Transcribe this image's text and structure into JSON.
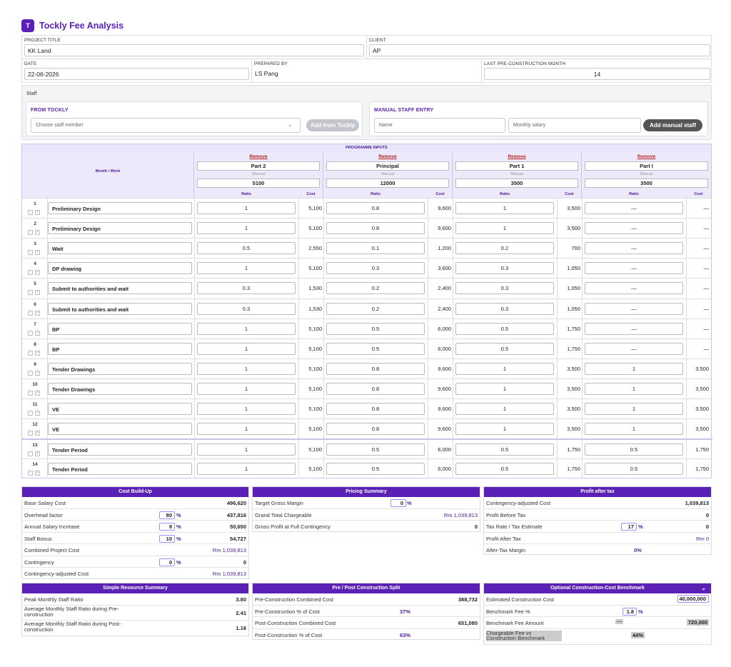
{
  "app": {
    "logo_letter": "T",
    "title": "Tockly Fee Analysis"
  },
  "meta": {
    "project_title_label": "PROJECT TITLE",
    "project_title": "KK Land",
    "client_label": "CLIENT",
    "client": "AP",
    "date_label": "DATE",
    "date": "22-06-2026",
    "prepared_by_label": "PREPARED BY",
    "prepared_by": "LS Pang",
    "last_month_label": "LAST PRE-CONSTRUCTION MONTH",
    "last_month": "14"
  },
  "staff": {
    "title": "Staff",
    "from_tockly": "FROM TOCKLY",
    "choose_placeholder": "Choose staff member",
    "add_tockly": "Add from Tockly",
    "manual_entry": "MANUAL STAFF ENTRY",
    "name_placeholder": "Name",
    "salary_placeholder": "Monthly salary",
    "add_manual": "Add manual staff"
  },
  "programme": {
    "band": "PROGRAMME INPUTS",
    "month_work": "Month / Work",
    "remove_label": "Remove",
    "source_label": "Manual",
    "ratio_label": "Ratio",
    "cost_label": "Cost",
    "parts": [
      {
        "name": "Part 2",
        "salary": "5100"
      },
      {
        "name": "Principal",
        "salary": "12000"
      },
      {
        "name": "Part 1",
        "salary": "3500"
      },
      {
        "name": "Part I",
        "salary": "3500"
      }
    ],
    "rows": [
      {
        "n": "1",
        "task": "Preliminary Design",
        "c": [
          [
            "1",
            "5,100"
          ],
          [
            "0.8",
            "9,600"
          ],
          [
            "1",
            "3,500"
          ],
          [
            "—",
            "—"
          ]
        ]
      },
      {
        "n": "2",
        "task": "Preliminary Design",
        "c": [
          [
            "1",
            "5,100"
          ],
          [
            "0.8",
            "9,600"
          ],
          [
            "1",
            "3,500"
          ],
          [
            "—",
            "—"
          ]
        ]
      },
      {
        "n": "3",
        "task": "Wait",
        "c": [
          [
            "0.5",
            "2,550"
          ],
          [
            "0.1",
            "1,200"
          ],
          [
            "0.2",
            "700"
          ],
          [
            "—",
            "—"
          ]
        ]
      },
      {
        "n": "4",
        "task": "DP drawing",
        "c": [
          [
            "1",
            "5,100"
          ],
          [
            "0.3",
            "3,600"
          ],
          [
            "0.3",
            "1,050"
          ],
          [
            "—",
            "—"
          ]
        ]
      },
      {
        "n": "5",
        "task": "Submit to authorities and wait",
        "c": [
          [
            "0.3",
            "1,530"
          ],
          [
            "0.2",
            "2,400"
          ],
          [
            "0.3",
            "1,050"
          ],
          [
            "—",
            "—"
          ]
        ]
      },
      {
        "n": "6",
        "task": "Submit to authorities and wait",
        "c": [
          [
            "0.3",
            "1,530"
          ],
          [
            "0.2",
            "2,400"
          ],
          [
            "0.3",
            "1,050"
          ],
          [
            "—",
            "—"
          ]
        ]
      },
      {
        "n": "7",
        "task": "BP",
        "c": [
          [
            "1",
            "5,100"
          ],
          [
            "0.5",
            "6,000"
          ],
          [
            "0.5",
            "1,750"
          ],
          [
            "—",
            "—"
          ]
        ]
      },
      {
        "n": "8",
        "task": "BP",
        "c": [
          [
            "1",
            "5,100"
          ],
          [
            "0.5",
            "6,000"
          ],
          [
            "0.5",
            "1,750"
          ],
          [
            "—",
            "—"
          ]
        ]
      },
      {
        "n": "9",
        "task": "Tender Drawings",
        "c": [
          [
            "1",
            "5,100"
          ],
          [
            "0.8",
            "9,600"
          ],
          [
            "1",
            "3,500"
          ],
          [
            "1",
            "3,500"
          ]
        ]
      },
      {
        "n": "10",
        "task": "Tender Drawings",
        "c": [
          [
            "1",
            "5,100"
          ],
          [
            "0.8",
            "9,600"
          ],
          [
            "1",
            "3,500"
          ],
          [
            "1",
            "3,500"
          ]
        ]
      },
      {
        "n": "11",
        "task": "VE",
        "c": [
          [
            "1",
            "5,100"
          ],
          [
            "0.8",
            "9,600"
          ],
          [
            "1",
            "3,500"
          ],
          [
            "1",
            "3,500"
          ]
        ]
      },
      {
        "n": "12",
        "task": "VE",
        "c": [
          [
            "1",
            "5,100"
          ],
          [
            "0.8",
            "9,600"
          ],
          [
            "1",
            "3,500"
          ],
          [
            "1",
            "3,500"
          ]
        ]
      },
      {
        "n": "13",
        "task": "Tender Period",
        "c": [
          [
            "1",
            "5,100"
          ],
          [
            "0.5",
            "6,000"
          ],
          [
            "0.5",
            "1,750"
          ],
          [
            "0.5",
            "1,750"
          ]
        ]
      },
      {
        "n": "14",
        "task": "Tender Period",
        "c": [
          [
            "1",
            "5,100"
          ],
          [
            "0.5",
            "6,000"
          ],
          [
            "0.5",
            "1,750"
          ],
          [
            "0.5",
            "1,750"
          ]
        ]
      }
    ]
  },
  "cost_buildup": {
    "title": "Cost Build-Up",
    "base_salary_label": "Base Salary Cost",
    "base_salary": "496,620",
    "overhead_label": "Overhead factor",
    "overhead_pct": "80",
    "overhead": "437,816",
    "annual_label": "Annual Salary Increase",
    "annual_pct": "8",
    "annual": "50,650",
    "bonus_label": "Staff Bonus",
    "bonus_pct": "10",
    "bonus": "54,727",
    "combined_label": "Combined Project Cost",
    "combined": "Rm 1,039,813",
    "contingency_label": "Contingency",
    "contingency_pct": "0",
    "contingency": "0",
    "adjusted_label": "Contingency-adjusted Cost",
    "adjusted": "Rm 1,039,813"
  },
  "pricing": {
    "title": "Pricing Summary",
    "target_label": "Target Gross Margin",
    "target_pct": "0",
    "grand_label": "Grand Total Chargeable",
    "grand": "Rm 1,039,813",
    "gross_label": "Gross Profit at Full Contingency",
    "gross": "0"
  },
  "profit": {
    "title": "Profit after tax",
    "adjusted_label": "Contingency-adjusted Cost",
    "adjusted": "1,039,813",
    "before_label": "Profit Before Tax",
    "before": "0",
    "tax_label": "Tax Rate / Tax Estimate",
    "tax_pct": "17",
    "tax": "0",
    "after_label": "Profit After Tax",
    "after": "Rm 0",
    "margin_label": "After-Tax Margin",
    "margin": "0%"
  },
  "resource": {
    "title": "Simple Resource Summary",
    "peak_label": "Peak Monthly Staff Ratio",
    "peak": "3.80",
    "pre_label": "Average Monthly Staff Ratio during Pre-construction",
    "pre": "2.41",
    "post_label": "Average Monthly Staff Ratio during Post-construction",
    "post": "1.16"
  },
  "split": {
    "title": "Pre / Post Construction Split",
    "pre_cost_label": "Pre-Construction Combined Cost",
    "pre_cost": "388,732",
    "pre_pct_label": "Pre-Construction % of Cost",
    "pre_pct": "37%",
    "post_cost_label": "Post-Construction Combined Cost",
    "post_cost": "651,080",
    "post_pct_label": "Post-Construction % of Cost",
    "post_pct": "63%"
  },
  "benchmark": {
    "title": "Optional Construction-Cost Benchmark",
    "est_label": "Estimated Construction Cost",
    "est": "40,000,000",
    "fee_label": "Benchmark Fee %",
    "fee_pct": "1.8",
    "amount_label": "Benchmark Fee Amount",
    "amount_dash": "—",
    "amount": "720,000",
    "ratio_label": "Chargeable Fee vs Construction Benchmark",
    "ratio": "44%"
  }
}
